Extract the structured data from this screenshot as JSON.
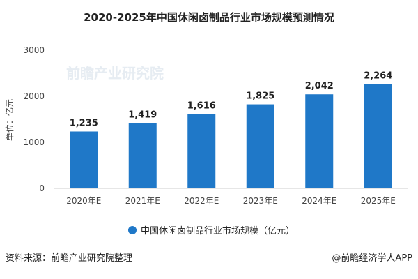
{
  "chart_data": {
    "type": "bar",
    "title": "2020-2025年中国休闲卤制品行业市场规模预测情况",
    "categories": [
      "2020年E",
      "2021年E",
      "2022年E",
      "2023年E",
      "2024年E",
      "2025年E"
    ],
    "values": [
      1235,
      1419,
      1616,
      1825,
      2042,
      2264
    ],
    "value_labels": [
      "1,235",
      "1,419",
      "1,616",
      "1,825",
      "2,042",
      "2,264"
    ],
    "ylabel": "单位：亿元",
    "xlabel": "",
    "ylim": [
      0,
      3000
    ],
    "yticks": [
      0,
      1000,
      2000,
      3000
    ],
    "grid": false,
    "legend": {
      "label": "中国休闲卤制品行业市场规模（亿元）",
      "position": "bottom"
    },
    "bar_color": "#1f78c8"
  },
  "footer": {
    "source": "资料来源：前瞻产业研究院整理",
    "brand": "@前瞻经济学人APP"
  },
  "watermark": "前瞻产业研究院"
}
